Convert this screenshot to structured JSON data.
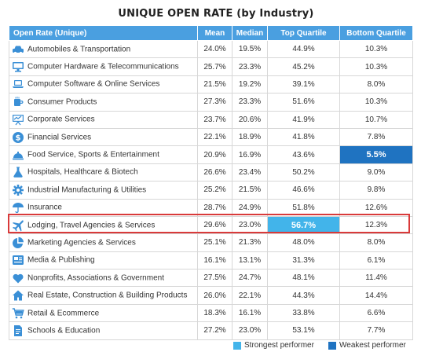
{
  "title": "UNIQUE OPEN RATE (by Industry)",
  "columns": [
    "Open Rate (Unique)",
    "Mean",
    "Median",
    "Top Quartile",
    "Bottom Quartile"
  ],
  "rows": [
    {
      "industry": "Automobiles & Transportation",
      "icon": "car-icon",
      "mean": "24.0%",
      "median": "19.5%",
      "top": "44.9%",
      "bottom": "10.3%"
    },
    {
      "industry": "Computer Hardware & Telecommunications",
      "icon": "monitor-icon",
      "mean": "25.7%",
      "median": "23.3%",
      "top": "45.2%",
      "bottom": "10.3%"
    },
    {
      "industry": "Computer Software & Online Services",
      "icon": "laptop-icon",
      "mean": "21.5%",
      "median": "19.2%",
      "top": "39.1%",
      "bottom": "8.0%"
    },
    {
      "industry": "Consumer Products",
      "icon": "cup-icon",
      "mean": "27.3%",
      "median": "23.3%",
      "top": "51.6%",
      "bottom": "10.3%"
    },
    {
      "industry": "Corporate Services",
      "icon": "presentation-icon",
      "mean": "23.7%",
      "median": "20.6%",
      "top": "41.9%",
      "bottom": "10.7%"
    },
    {
      "industry": "Financial Services",
      "icon": "dollar-icon",
      "mean": "22.1%",
      "median": "18.9%",
      "top": "41.8%",
      "bottom": "7.8%"
    },
    {
      "industry": "Food Service, Sports & Entertainment",
      "icon": "service-bell-icon",
      "mean": "20.9%",
      "median": "16.9%",
      "top": "43.6%",
      "bottom": "5.5%"
    },
    {
      "industry": "Hospitals, Healthcare & Biotech",
      "icon": "flask-icon",
      "mean": "26.6%",
      "median": "23.4%",
      "top": "50.2%",
      "bottom": "9.0%"
    },
    {
      "industry": "Industrial Manufacturing & Utilities",
      "icon": "gear-icon",
      "mean": "25.2%",
      "median": "21.5%",
      "top": "46.6%",
      "bottom": "9.8%"
    },
    {
      "industry": "Insurance",
      "icon": "umbrella-icon",
      "mean": "28.7%",
      "median": "24.9%",
      "top": "51.8%",
      "bottom": "12.6%"
    },
    {
      "industry": "Lodging, Travel Agencies & Services",
      "icon": "airplane-icon",
      "mean": "29.6%",
      "median": "23.0%",
      "top": "56.7%",
      "bottom": "12.3%"
    },
    {
      "industry": "Marketing Agencies & Services",
      "icon": "pie-chart-icon",
      "mean": "25.1%",
      "median": "21.3%",
      "top": "48.0%",
      "bottom": "8.0%"
    },
    {
      "industry": "Media & Publishing",
      "icon": "media-icon",
      "mean": "16.1%",
      "median": "13.1%",
      "top": "31.3%",
      "bottom": "6.1%"
    },
    {
      "industry": "Nonprofits, Associations & Government",
      "icon": "heart-icon",
      "mean": "27.5%",
      "median": "24.7%",
      "top": "48.1%",
      "bottom": "11.4%"
    },
    {
      "industry": "Real Estate, Construction & Building Products",
      "icon": "house-icon",
      "mean": "26.0%",
      "median": "22.1%",
      "top": "44.3%",
      "bottom": "14.4%"
    },
    {
      "industry": "Retail & Ecommerce",
      "icon": "shopping-cart-icon",
      "mean": "18.3%",
      "median": "16.1%",
      "top": "33.8%",
      "bottom": "6.6%"
    },
    {
      "industry": "Schools & Education",
      "icon": "document-icon",
      "mean": "27.2%",
      "median": "23.0%",
      "top": "53.1%",
      "bottom": "7.7%"
    }
  ],
  "highlights": {
    "strongest": {
      "row": 10,
      "column": "top"
    },
    "weakest": {
      "row": 6,
      "column": "bottom"
    },
    "boxed_row": 10
  },
  "legend": {
    "strong_label": "Strongest performer",
    "weak_label": "Weakest performer"
  },
  "colors": {
    "header": "#4a9fe0",
    "icon": "#3a8fd6",
    "strongest": "#42b4ea",
    "weakest": "#1f73c1",
    "box": "#d93a3a"
  }
}
